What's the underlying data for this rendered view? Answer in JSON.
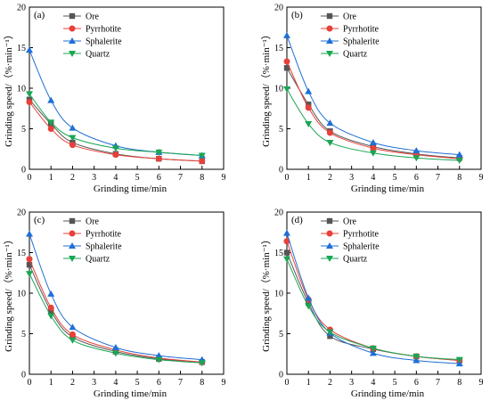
{
  "chart_data": [
    {
      "type": "line",
      "panel_label": "(a)",
      "xlabel": "Grinding time/min",
      "ylabel": "Grinding speed/（%·min⁻¹）",
      "xlim": [
        0,
        9
      ],
      "ylim": [
        0,
        20
      ],
      "xticks": [
        "0",
        "1",
        "2",
        "3",
        "4",
        "5",
        "6",
        "7",
        "8",
        "9"
      ],
      "yticks": [
        "0",
        "5",
        "10",
        "15",
        "20"
      ],
      "legend_position": "top-center",
      "x": [
        0,
        1,
        2,
        4,
        6,
        8
      ],
      "series": [
        {
          "name": "Ore",
          "marker": "square",
          "color": "#555555",
          "values": [
            8.6,
            5.6,
            3.3,
            1.9,
            1.3,
            1.0
          ]
        },
        {
          "name": "Pyrrhotite",
          "marker": "circle",
          "color": "#e8403a",
          "values": [
            8.3,
            5.0,
            3.0,
            1.8,
            1.3,
            1.0
          ]
        },
        {
          "name": "Sphalerite",
          "marker": "triangle-up",
          "color": "#1f6fd6",
          "values": [
            14.7,
            8.5,
            5.1,
            2.9,
            2.1,
            1.7
          ]
        },
        {
          "name": "Quartz",
          "marker": "triangle-down",
          "color": "#19a653",
          "values": [
            9.3,
            5.8,
            3.9,
            2.6,
            2.1,
            1.7
          ]
        }
      ]
    },
    {
      "type": "line",
      "panel_label": "(b)",
      "xlabel": "Grinding time/min",
      "ylabel": "Grinding speed/（%·min⁻¹）",
      "xlim": [
        0,
        9
      ],
      "ylim": [
        0,
        20
      ],
      "xticks": [
        "0",
        "1",
        "2",
        "3",
        "4",
        "5",
        "6",
        "7",
        "8",
        "9"
      ],
      "yticks": [
        "0",
        "5",
        "10",
        "15",
        "20"
      ],
      "legend_position": "top-center",
      "x": [
        0,
        1,
        2,
        4,
        6,
        8
      ],
      "series": [
        {
          "name": "Ore",
          "marker": "square",
          "color": "#555555",
          "values": [
            12.5,
            8.0,
            4.7,
            2.8,
            1.9,
            1.4
          ]
        },
        {
          "name": "Pyrrhotite",
          "marker": "circle",
          "color": "#e8403a",
          "values": [
            13.3,
            7.6,
            4.5,
            2.6,
            1.8,
            1.3
          ]
        },
        {
          "name": "Sphalerite",
          "marker": "triangle-up",
          "color": "#1f6fd6",
          "values": [
            16.5,
            9.6,
            5.7,
            3.3,
            2.3,
            1.8
          ]
        },
        {
          "name": "Quartz",
          "marker": "triangle-down",
          "color": "#19a653",
          "values": [
            9.9,
            5.6,
            3.3,
            2.0,
            1.4,
            1.1
          ]
        }
      ]
    },
    {
      "type": "line",
      "panel_label": "(c)",
      "xlabel": "Grinding time/min",
      "ylabel": "Grinding speed/（%·min⁻¹）",
      "xlim": [
        0,
        9
      ],
      "ylim": [
        0,
        20
      ],
      "xticks": [
        "0",
        "1",
        "2",
        "3",
        "4",
        "5",
        "6",
        "7",
        "8",
        "9"
      ],
      "yticks": [
        "0",
        "5",
        "10",
        "15",
        "20"
      ],
      "legend_position": "top-center",
      "x": [
        0,
        1,
        2,
        4,
        6,
        8
      ],
      "series": [
        {
          "name": "Ore",
          "marker": "square",
          "color": "#555555",
          "values": [
            13.5,
            7.8,
            4.6,
            2.8,
            1.9,
            1.5
          ]
        },
        {
          "name": "Pyrrhotite",
          "marker": "circle",
          "color": "#e8403a",
          "values": [
            14.2,
            8.2,
            4.9,
            3.0,
            2.0,
            1.5
          ]
        },
        {
          "name": "Sphalerite",
          "marker": "triangle-up",
          "color": "#1f6fd6",
          "values": [
            17.3,
            9.9,
            5.8,
            3.3,
            2.3,
            1.8
          ]
        },
        {
          "name": "Quartz",
          "marker": "triangle-down",
          "color": "#19a653",
          "values": [
            12.4,
            7.2,
            4.2,
            2.6,
            1.8,
            1.4
          ]
        }
      ]
    },
    {
      "type": "line",
      "panel_label": "(d)",
      "xlabel": "Grinding time/min",
      "ylabel": "Grinding speed/（%·min⁻¹）",
      "xlim": [
        0,
        9
      ],
      "ylim": [
        0,
        20
      ],
      "xticks": [
        "0",
        "1",
        "2",
        "3",
        "4",
        "5",
        "6",
        "7",
        "8",
        "9"
      ],
      "yticks": [
        "0",
        "5",
        "10",
        "15",
        "20"
      ],
      "legend_position": "top-center",
      "x": [
        0,
        1,
        2,
        4,
        6,
        8
      ],
      "series": [
        {
          "name": "Ore",
          "marker": "square",
          "color": "#555555",
          "values": [
            15.0,
            8.8,
            4.7,
            3.1,
            2.2,
            1.7
          ]
        },
        {
          "name": "Pyrrhotite",
          "marker": "circle",
          "color": "#e8403a",
          "values": [
            16.4,
            9.2,
            5.5,
            3.2,
            2.2,
            1.7
          ]
        },
        {
          "name": "Sphalerite",
          "marker": "triangle-up",
          "color": "#1f6fd6",
          "values": [
            17.4,
            9.4,
            5.1,
            2.6,
            1.7,
            1.3
          ]
        },
        {
          "name": "Quartz",
          "marker": "triangle-down",
          "color": "#19a653",
          "values": [
            14.2,
            8.4,
            5.2,
            3.2,
            2.2,
            1.8
          ]
        }
      ]
    }
  ]
}
